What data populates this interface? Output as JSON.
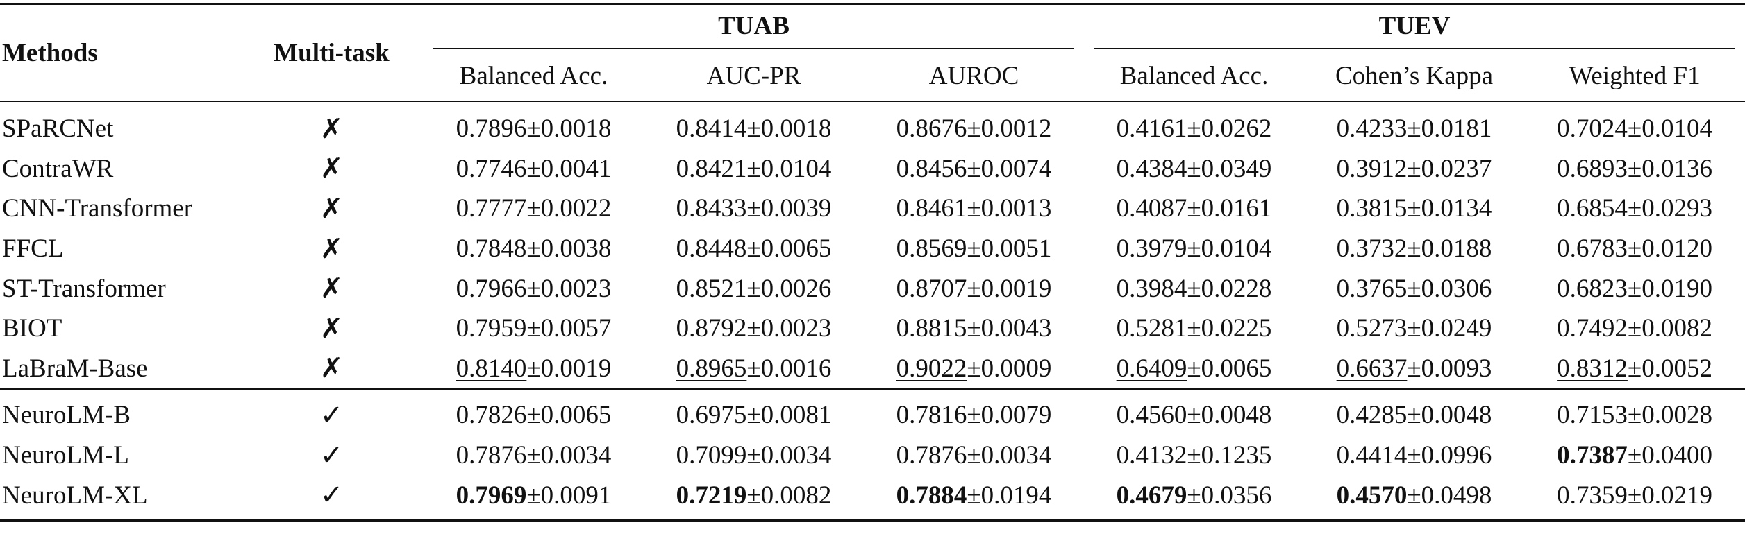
{
  "table": {
    "headers": {
      "methods": "Methods",
      "multitask": "Multi-task",
      "groups": [
        "TUAB",
        "TUEV"
      ],
      "metrics": [
        "Balanced Acc.",
        "AUC-PR",
        "AUROC",
        "Balanced Acc.",
        "Cohen’s Kappa",
        "Weighted F1"
      ]
    },
    "rows": [
      {
        "method": "SPaRCNet",
        "multitask": "✗",
        "cells": [
          {
            "mean": "0.7896",
            "pm": "±0.0018"
          },
          {
            "mean": "0.8414",
            "pm": "±0.0018"
          },
          {
            "mean": "0.8676",
            "pm": "±0.0012"
          },
          {
            "mean": "0.4161",
            "pm": "±0.0262"
          },
          {
            "mean": "0.4233",
            "pm": "±0.0181"
          },
          {
            "mean": "0.7024",
            "pm": "±0.0104"
          }
        ]
      },
      {
        "method": "ContraWR",
        "multitask": "✗",
        "cells": [
          {
            "mean": "0.7746",
            "pm": "±0.0041"
          },
          {
            "mean": "0.8421",
            "pm": "±0.0104"
          },
          {
            "mean": "0.8456",
            "pm": "±0.0074"
          },
          {
            "mean": "0.4384",
            "pm": "±0.0349"
          },
          {
            "mean": "0.3912",
            "pm": "±0.0237"
          },
          {
            "mean": "0.6893",
            "pm": "±0.0136"
          }
        ]
      },
      {
        "method": "CNN-Transformer",
        "multitask": "✗",
        "cells": [
          {
            "mean": "0.7777",
            "pm": "±0.0022"
          },
          {
            "mean": "0.8433",
            "pm": "±0.0039"
          },
          {
            "mean": "0.8461",
            "pm": "±0.0013"
          },
          {
            "mean": "0.4087",
            "pm": "±0.0161"
          },
          {
            "mean": "0.3815",
            "pm": "±0.0134"
          },
          {
            "mean": "0.6854",
            "pm": "±0.0293"
          }
        ]
      },
      {
        "method": "FFCL",
        "multitask": "✗",
        "cells": [
          {
            "mean": "0.7848",
            "pm": "±0.0038"
          },
          {
            "mean": "0.8448",
            "pm": "±0.0065"
          },
          {
            "mean": "0.8569",
            "pm": "±0.0051"
          },
          {
            "mean": "0.3979",
            "pm": "±0.0104"
          },
          {
            "mean": "0.3732",
            "pm": "±0.0188"
          },
          {
            "mean": "0.6783",
            "pm": "±0.0120"
          }
        ]
      },
      {
        "method": "ST-Transformer",
        "multitask": "✗",
        "cells": [
          {
            "mean": "0.7966",
            "pm": "±0.0023"
          },
          {
            "mean": "0.8521",
            "pm": "±0.0026"
          },
          {
            "mean": "0.8707",
            "pm": "±0.0019"
          },
          {
            "mean": "0.3984",
            "pm": "±0.0228"
          },
          {
            "mean": "0.3765",
            "pm": "±0.0306"
          },
          {
            "mean": "0.6823",
            "pm": "±0.0190"
          }
        ]
      },
      {
        "method": "BIOT",
        "multitask": "✗",
        "cells": [
          {
            "mean": "0.7959",
            "pm": "±0.0057"
          },
          {
            "mean": "0.8792",
            "pm": "±0.0023"
          },
          {
            "mean": "0.8815",
            "pm": "±0.0043"
          },
          {
            "mean": "0.5281",
            "pm": "±0.0225"
          },
          {
            "mean": "0.5273",
            "pm": "±0.0249"
          },
          {
            "mean": "0.7492",
            "pm": "±0.0082"
          }
        ]
      },
      {
        "method": "LaBraM-Base",
        "multitask": "✗",
        "cells": [
          {
            "mean": "0.8140",
            "pm": "±0.0019",
            "style": "underline"
          },
          {
            "mean": "0.8965",
            "pm": "±0.0016",
            "style": "underline"
          },
          {
            "mean": "0.9022",
            "pm": "±0.0009",
            "style": "underline"
          },
          {
            "mean": "0.6409",
            "pm": "±0.0065",
            "style": "underline"
          },
          {
            "mean": "0.6637",
            "pm": "±0.0093",
            "style": "underline"
          },
          {
            "mean": "0.8312",
            "pm": "±0.0052",
            "style": "underline"
          }
        ]
      },
      {
        "method": "NeuroLM-B",
        "multitask": "✓",
        "group_start": true,
        "cells": [
          {
            "mean": "0.7826",
            "pm": "±0.0065"
          },
          {
            "mean": "0.6975",
            "pm": "±0.0081"
          },
          {
            "mean": "0.7816",
            "pm": "±0.0079"
          },
          {
            "mean": "0.4560",
            "pm": "±0.0048"
          },
          {
            "mean": "0.4285",
            "pm": "±0.0048"
          },
          {
            "mean": "0.7153",
            "pm": "±0.0028"
          }
        ]
      },
      {
        "method": "NeuroLM-L",
        "multitask": "✓",
        "cells": [
          {
            "mean": "0.7876",
            "pm": "±0.0034"
          },
          {
            "mean": "0.7099",
            "pm": "±0.0034"
          },
          {
            "mean": "0.7876",
            "pm": "±0.0034"
          },
          {
            "mean": "0.4132",
            "pm": "±0.1235"
          },
          {
            "mean": "0.4414",
            "pm": "±0.0996"
          },
          {
            "mean": "0.7387",
            "pm": "±0.0400",
            "style": "bold"
          }
        ]
      },
      {
        "method": "NeuroLM-XL",
        "multitask": "✓",
        "cells": [
          {
            "mean": "0.7969",
            "pm": "±0.0091",
            "style": "bold"
          },
          {
            "mean": "0.7219",
            "pm": "±0.0082",
            "style": "bold"
          },
          {
            "mean": "0.7884",
            "pm": "±0.0194",
            "style": "bold"
          },
          {
            "mean": "0.4679",
            "pm": "±0.0356",
            "style": "bold"
          },
          {
            "mean": "0.4570",
            "pm": "±0.0498",
            "style": "bold"
          },
          {
            "mean": "0.7359",
            "pm": "±0.0219"
          }
        ]
      }
    ]
  }
}
